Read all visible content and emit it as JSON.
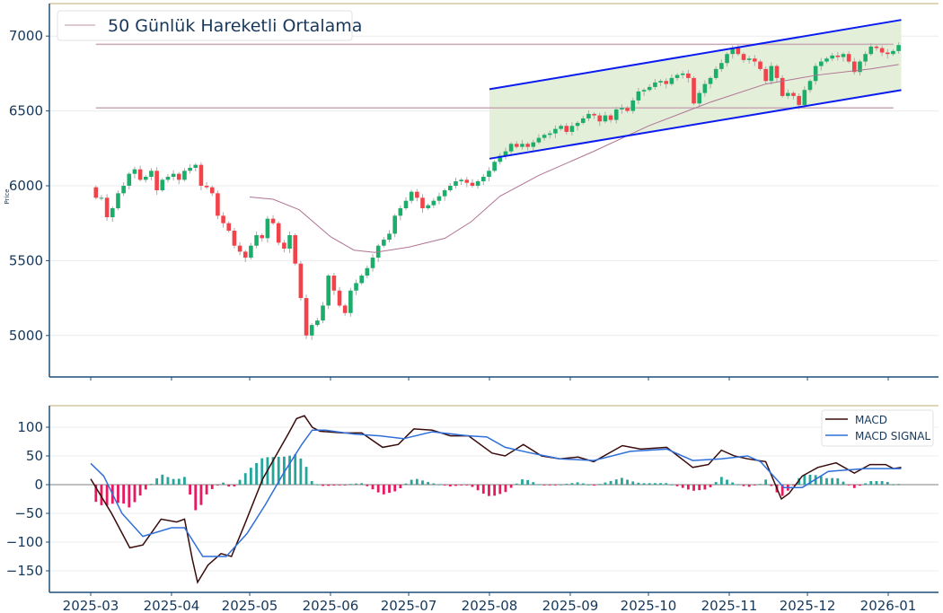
{
  "chart_data": [
    {
      "type": "candlestick",
      "title": "",
      "ylabel": "Price",
      "ylim": [
        4723,
        7217
      ],
      "yticks": [
        "5000",
        "5500",
        "6000",
        "6500",
        "7000"
      ],
      "legend": {
        "label": "50 Günlük Hareketli Ortalama",
        "placement": "top-left"
      },
      "start_date": "2025-03-03",
      "end_date": "2026-01-05",
      "first_open": 5990,
      "closes": [
        5920,
        5920,
        5790,
        5850,
        5950,
        6000,
        6080,
        6110,
        6040,
        6060,
        6100,
        5970,
        6040,
        6060,
        6080,
        6040,
        6100,
        6120,
        6140,
        6000,
        5990,
        5950,
        5800,
        5750,
        5700,
        5600,
        5560,
        5520,
        5600,
        5670,
        5650,
        5780,
        5750,
        5620,
        5580,
        5670,
        5480,
        5250,
        5000,
        5070,
        5100,
        5200,
        5400,
        5300,
        5200,
        5150,
        5300,
        5350,
        5400,
        5450,
        5520,
        5600,
        5640,
        5680,
        5800,
        5850,
        5900,
        5960,
        5920,
        5850,
        5870,
        5900,
        5930,
        5970,
        6000,
        6030,
        6040,
        6020,
        6000,
        6030,
        6060,
        6100,
        6160,
        6200,
        6230,
        6280,
        6260,
        6280,
        6260,
        6290,
        6320,
        6340,
        6350,
        6380,
        6400,
        6360,
        6400,
        6420,
        6450,
        6480,
        6470,
        6430,
        6470,
        6440,
        6510,
        6520,
        6500,
        6570,
        6630,
        6640,
        6660,
        6690,
        6700,
        6680,
        6720,
        6740,
        6750,
        6720,
        6550,
        6620,
        6680,
        6720,
        6780,
        6820,
        6880,
        6920,
        6880,
        6840,
        6850,
        6830,
        6780,
        6700,
        6800,
        6720,
        6600,
        6620,
        6600,
        6540,
        6640,
        6700,
        6800,
        6830,
        6850,
        6870,
        6860,
        6880,
        6830,
        6760,
        6830,
        6880,
        6930,
        6920,
        6890,
        6880,
        6900,
        6940
      ],
      "ma50": {
        "label": "50 Günlük Hareketli Ortalama",
        "points": [
          [
            "2025-05-01",
            5925
          ],
          [
            "2025-05-10",
            5910
          ],
          [
            "2025-05-20",
            5840
          ],
          [
            "2025-06-01",
            5660
          ],
          [
            "2025-06-10",
            5570
          ],
          [
            "2025-06-18",
            5555
          ],
          [
            "2025-07-01",
            5590
          ],
          [
            "2025-07-15",
            5650
          ],
          [
            "2025-07-25",
            5760
          ],
          [
            "2025-08-05",
            5930
          ],
          [
            "2025-08-20",
            6070
          ],
          [
            "2025-09-10",
            6230
          ],
          [
            "2025-10-01",
            6400
          ],
          [
            "2025-10-25",
            6560
          ],
          [
            "2025-11-15",
            6680
          ],
          [
            "2025-12-05",
            6740
          ],
          [
            "2025-12-25",
            6780
          ],
          [
            "2026-01-05",
            6810
          ]
        ]
      },
      "horizontal_lines": [
        6945,
        6520
      ],
      "line_range": [
        "2025-03-03",
        "2026-01-03"
      ],
      "channel": {
        "start": "2025-08-01",
        "end": "2026-01-06",
        "upper": [
          6645,
          7108
        ],
        "lower": [
          6181,
          6639
        ]
      }
    },
    {
      "type": "line",
      "ylim": [
        -187.5,
        137.5
      ],
      "yticks": [
        "100",
        "50",
        "0",
        "−50",
        "−100",
        "−150"
      ],
      "xticks": [
        "2025-03",
        "2025-04",
        "2025-05",
        "2025-06",
        "2025-07",
        "2025-08",
        "2025-09",
        "2025-10",
        "2025-11",
        "2025-12",
        "2026-01"
      ],
      "legend_placement": "top-right",
      "series": [
        {
          "name": "MACD",
          "points": [
            [
              "2025-03-01",
              10
            ],
            [
              "2025-03-05",
              -20
            ],
            [
              "2025-03-09",
              -50
            ],
            [
              "2025-03-16",
              -110
            ],
            [
              "2025-03-21",
              -105
            ],
            [
              "2025-03-28",
              -60
            ],
            [
              "2025-04-03",
              -65
            ],
            [
              "2025-04-06",
              -60
            ],
            [
              "2025-04-09",
              -130
            ],
            [
              "2025-04-11",
              -170
            ],
            [
              "2025-04-15",
              -140
            ],
            [
              "2025-04-20",
              -120
            ],
            [
              "2025-04-24",
              -125
            ],
            [
              "2025-04-29",
              -70
            ],
            [
              "2025-05-06",
              10
            ],
            [
              "2025-05-11",
              50
            ],
            [
              "2025-05-16",
              90
            ],
            [
              "2025-05-19",
              115
            ],
            [
              "2025-05-22",
              120
            ],
            [
              "2025-05-25",
              100
            ],
            [
              "2025-05-28",
              93
            ],
            [
              "2025-06-06",
              90
            ],
            [
              "2025-06-13",
              90
            ],
            [
              "2025-06-21",
              65
            ],
            [
              "2025-06-27",
              70
            ],
            [
              "2025-07-03",
              97
            ],
            [
              "2025-07-10",
              95
            ],
            [
              "2025-07-17",
              85
            ],
            [
              "2025-07-24",
              85
            ],
            [
              "2025-08-02",
              55
            ],
            [
              "2025-08-07",
              50
            ],
            [
              "2025-08-14",
              70
            ],
            [
              "2025-08-21",
              50
            ],
            [
              "2025-08-28",
              45
            ],
            [
              "2025-09-04",
              48
            ],
            [
              "2025-09-10",
              40
            ],
            [
              "2025-09-21",
              68
            ],
            [
              "2025-09-28",
              62
            ],
            [
              "2025-10-08",
              65
            ],
            [
              "2025-10-18",
              30
            ],
            [
              "2025-10-24",
              35
            ],
            [
              "2025-10-29",
              60
            ],
            [
              "2025-11-03",
              50
            ],
            [
              "2025-11-08",
              45
            ],
            [
              "2025-11-15",
              40
            ],
            [
              "2025-11-21",
              -25
            ],
            [
              "2025-11-24",
              -15
            ],
            [
              "2025-11-29",
              15
            ],
            [
              "2025-12-05",
              30
            ],
            [
              "2025-12-12",
              38
            ],
            [
              "2025-12-19",
              20
            ],
            [
              "2025-12-25",
              35
            ],
            [
              "2025-12-31",
              35
            ],
            [
              "2026-01-03",
              28
            ],
            [
              "2026-01-06",
              30
            ]
          ]
        },
        {
          "name": "MACD SIGNAL",
          "points": [
            [
              "2025-03-01",
              37
            ],
            [
              "2025-03-06",
              15
            ],
            [
              "2025-03-13",
              -50
            ],
            [
              "2025-03-21",
              -90
            ],
            [
              "2025-04-01",
              -75
            ],
            [
              "2025-04-06",
              -75
            ],
            [
              "2025-04-13",
              -125
            ],
            [
              "2025-04-22",
              -125
            ],
            [
              "2025-04-30",
              -85
            ],
            [
              "2025-05-07",
              -35
            ],
            [
              "2025-05-14",
              20
            ],
            [
              "2025-05-21",
              70
            ],
            [
              "2025-05-25",
              95
            ],
            [
              "2025-05-30",
              95
            ],
            [
              "2025-06-10",
              88
            ],
            [
              "2025-06-20",
              85
            ],
            [
              "2025-06-29",
              80
            ],
            [
              "2025-07-10",
              92
            ],
            [
              "2025-07-24",
              85
            ],
            [
              "2025-07-31",
              83
            ],
            [
              "2025-08-07",
              65
            ],
            [
              "2025-08-17",
              55
            ],
            [
              "2025-08-28",
              45
            ],
            [
              "2025-09-10",
              42
            ],
            [
              "2025-09-24",
              58
            ],
            [
              "2025-10-08",
              62
            ],
            [
              "2025-10-18",
              42
            ],
            [
              "2025-10-29",
              45
            ],
            [
              "2025-11-08",
              50
            ],
            [
              "2025-11-13",
              40
            ],
            [
              "2025-11-19",
              10
            ],
            [
              "2025-11-22",
              -5
            ],
            [
              "2025-11-29",
              -5
            ],
            [
              "2025-12-09",
              23
            ],
            [
              "2025-12-23",
              28
            ],
            [
              "2026-01-06",
              28
            ]
          ]
        }
      ]
    }
  ],
  "colors": {
    "up": "#1aae6a",
    "down": "#f2434a",
    "hist_up": "#26a69a",
    "hist_down": "#e8195e",
    "macd": "#3a0b0b",
    "signal": "#2f6fd8",
    "ma": "#b07394",
    "hline": "#c9a9b3",
    "channel": "#0a1cf0",
    "channel_fill": "#e3efd9",
    "axis": "#1f4e79",
    "top_spine": "#d6c7a1",
    "grid": "#ececec"
  }
}
